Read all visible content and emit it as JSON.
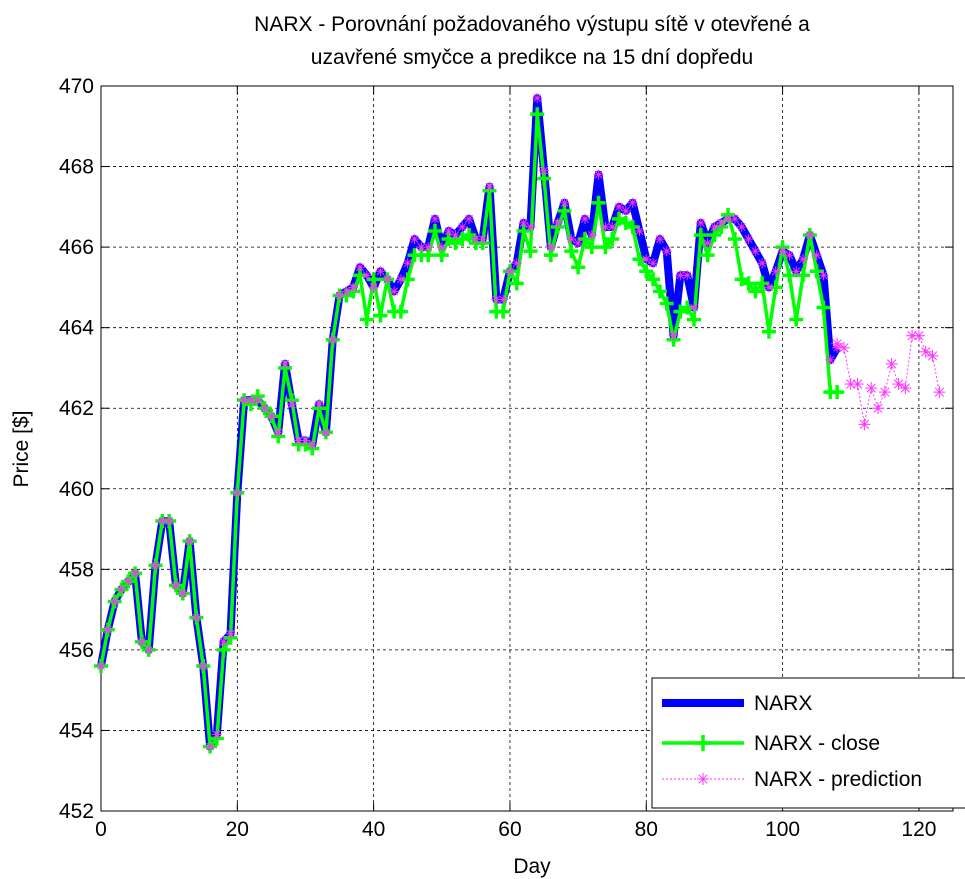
{
  "chart_data": {
    "type": "line",
    "title_line1": "NARX - Porovnání požadovaného výstupu sítě v otevřené a",
    "title_line2": "uzavřené smyčce a  predikce na 15 dní dopředu",
    "xlabel": "Day",
    "ylabel": "Price [$]",
    "xlim": [
      0,
      125
    ],
    "ylim": [
      452,
      470
    ],
    "xticks": [
      0,
      20,
      40,
      60,
      80,
      100,
      120
    ],
    "yticks": [
      452,
      454,
      456,
      458,
      460,
      462,
      464,
      466,
      468,
      470
    ],
    "grid": true,
    "legend_position": "bottom-right",
    "series": [
      {
        "name": "NARX",
        "color": "#0000ff",
        "style": "thick-line",
        "x": [
          0,
          1,
          2,
          3,
          4,
          5,
          6,
          7,
          8,
          9,
          10,
          11,
          12,
          13,
          14,
          15,
          16,
          17,
          18,
          19,
          20,
          21,
          22,
          23,
          24,
          25,
          26,
          27,
          28,
          29,
          30,
          31,
          32,
          33,
          34,
          35,
          36,
          37,
          38,
          39,
          40,
          41,
          42,
          43,
          44,
          45,
          46,
          47,
          48,
          49,
          50,
          51,
          52,
          53,
          54,
          55,
          56,
          57,
          58,
          59,
          60,
          61,
          62,
          63,
          64,
          65,
          66,
          67,
          68,
          69,
          70,
          71,
          72,
          73,
          74,
          75,
          76,
          77,
          78,
          79,
          80,
          81,
          82,
          83,
          84,
          85,
          86,
          87,
          88,
          89,
          90,
          91,
          92,
          93,
          94,
          95,
          96,
          97,
          98,
          99,
          100,
          101,
          102,
          103,
          104,
          105,
          106,
          107,
          108
        ],
        "values": [
          455.6,
          456.5,
          457.2,
          457.5,
          457.7,
          457.9,
          456.2,
          456.0,
          458.1,
          459.2,
          459.2,
          457.6,
          457.4,
          458.7,
          456.8,
          455.6,
          453.6,
          453.9,
          456.2,
          456.4,
          459.9,
          462.2,
          462.2,
          462.2,
          462.0,
          461.8,
          461.4,
          463.1,
          462.1,
          461.2,
          461.2,
          461.1,
          462.1,
          461.4,
          463.7,
          464.8,
          464.9,
          465.0,
          465.5,
          465.3,
          465.0,
          465.4,
          465.2,
          464.9,
          465.2,
          465.6,
          466.2,
          466.0,
          466.0,
          466.7,
          466.0,
          466.4,
          466.3,
          466.5,
          466.7,
          466.2,
          466.2,
          467.5,
          464.7,
          464.7,
          465.4,
          465.6,
          466.6,
          466.5,
          469.7,
          467.9,
          466.0,
          466.6,
          467.1,
          466.2,
          466.1,
          466.7,
          466.3,
          467.8,
          466.5,
          466.5,
          467.0,
          466.9,
          467.1,
          466.4,
          465.7,
          465.6,
          466.2,
          465.9,
          463.8,
          465.3,
          465.3,
          464.5,
          466.6,
          466.1,
          466.5,
          466.6,
          466.7,
          466.7,
          466.5,
          466.2,
          465.9,
          465.6,
          465.0,
          465.4,
          465.9,
          465.8,
          465.4,
          465.7,
          466.3,
          465.8,
          465.3,
          463.2,
          463.5
        ]
      },
      {
        "name": "NARX - close",
        "color": "#00ff00",
        "style": "line-plus",
        "x": [
          0,
          1,
          2,
          3,
          4,
          5,
          6,
          7,
          8,
          9,
          10,
          11,
          12,
          13,
          14,
          15,
          16,
          17,
          18,
          19,
          20,
          21,
          22,
          23,
          24,
          25,
          26,
          27,
          28,
          29,
          30,
          31,
          32,
          33,
          34,
          35,
          36,
          37,
          38,
          39,
          40,
          41,
          42,
          43,
          44,
          45,
          46,
          47,
          48,
          49,
          50,
          51,
          52,
          53,
          54,
          55,
          56,
          57,
          58,
          59,
          60,
          61,
          62,
          63,
          64,
          65,
          66,
          67,
          68,
          69,
          70,
          71,
          72,
          73,
          74,
          75,
          76,
          77,
          78,
          79,
          80,
          81,
          82,
          83,
          84,
          85,
          86,
          87,
          88,
          89,
          90,
          91,
          92,
          93,
          94,
          95,
          96,
          97,
          98,
          99,
          100,
          101,
          102,
          103,
          104,
          105,
          106,
          107,
          108
        ],
        "values": [
          455.6,
          456.5,
          457.2,
          457.5,
          457.7,
          457.9,
          456.2,
          456.0,
          458.1,
          459.2,
          459.2,
          457.6,
          457.4,
          458.7,
          456.8,
          455.6,
          453.6,
          453.8,
          456.0,
          456.3,
          459.9,
          462.2,
          462.1,
          462.3,
          462.0,
          461.8,
          461.3,
          463.0,
          462.2,
          461.1,
          461.1,
          461.0,
          462.0,
          461.4,
          463.7,
          464.8,
          464.8,
          464.9,
          465.3,
          464.2,
          465.2,
          464.3,
          465.2,
          464.4,
          464.4,
          465.2,
          465.8,
          465.8,
          465.8,
          466.4,
          465.8,
          466.2,
          466.1,
          466.2,
          466.3,
          466.1,
          466.1,
          467.4,
          464.4,
          464.4,
          465.4,
          465.1,
          466.4,
          465.9,
          469.3,
          467.7,
          465.8,
          466.5,
          466.9,
          465.9,
          465.5,
          466.2,
          466.0,
          467.1,
          466.0,
          466.2,
          466.7,
          466.6,
          466.5,
          465.7,
          465.4,
          465.2,
          464.9,
          464.6,
          463.7,
          464.4,
          464.5,
          464.2,
          466.3,
          465.8,
          466.3,
          466.5,
          466.8,
          466.2,
          465.2,
          465.1,
          464.9,
          465.1,
          463.9,
          465.0,
          466.0,
          465.3,
          464.2,
          465.3,
          466.3,
          465.4,
          464.5,
          462.4,
          462.4
        ]
      },
      {
        "name": "NARX - prediction",
        "color": "#ff33ff",
        "style": "dotted-star",
        "x": [
          108,
          109,
          110,
          111,
          112,
          113,
          114,
          115,
          116,
          117,
          118,
          119,
          120,
          121,
          122,
          123
        ],
        "values": [
          463.6,
          463.5,
          462.6,
          462.6,
          461.6,
          462.5,
          462.0,
          462.4,
          463.1,
          462.6,
          462.5,
          463.8,
          463.8,
          463.4,
          463.3,
          462.4
        ]
      }
    ]
  }
}
